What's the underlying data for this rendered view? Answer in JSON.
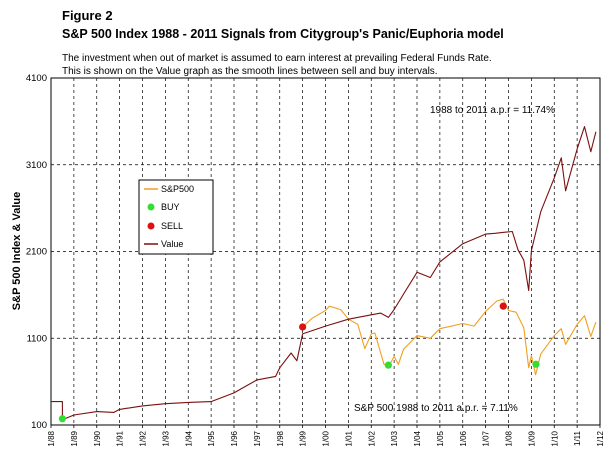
{
  "header": {
    "figure_label": "Figure 2",
    "title": "S&P 500 Index 1988 - 2011  Signals from Citygroup's Panic/Euphoria model",
    "note_line1": "The investment when out of market is assumed to earn interest at prevailing Federal Funds Rate.",
    "note_line2": "This is shown on the Value graph as the smooth lines between sell and buy intervals."
  },
  "chart_data": {
    "type": "line",
    "ylabel": "S&P 500 Index  &   Value",
    "ylim": [
      100,
      4100
    ],
    "yticks": [
      100,
      1100,
      2100,
      3100,
      4100
    ],
    "xlim": [
      "1988-01-01",
      "2011-12-31"
    ],
    "xtick_labels": [
      "1/88",
      "1/89",
      "1/90",
      "1/91",
      "1/92",
      "1/93",
      "1/94",
      "1/95",
      "1/96",
      "1/97",
      "1/98",
      "1/99",
      "1/00",
      "1/01",
      "1/02",
      "1/03",
      "1/04",
      "1/05",
      "1/06",
      "1/07",
      "1/08",
      "1/09",
      "1/10",
      "1/11",
      "1/12"
    ],
    "grid": true,
    "legend_position": "left",
    "annotations": {
      "value_apr": "1988 to 2011 a.p.r =   11.74%",
      "sp500_apr": "S&P 500 1988 to 2011 a.p.r. =    7.11%"
    },
    "series": [
      {
        "name": "S&P500",
        "color": "#F0A020",
        "x": [
          "1999-01-01",
          "1999-06-01",
          "2000-01-01",
          "2000-03-01",
          "2000-09-01",
          "2001-01-01",
          "2001-06-01",
          "2001-09-20",
          "2002-01-01",
          "2002-03-01",
          "2002-07-23",
          "2002-10-09",
          "2003-01-01",
          "2003-03-11",
          "2003-06-01",
          "2004-01-01",
          "2004-08-01",
          "2005-01-01",
          "2006-01-01",
          "2006-07-01",
          "2007-01-01",
          "2007-07-01",
          "2007-10-09",
          "2008-01-01",
          "2008-05-01",
          "2008-09-01",
          "2008-11-20",
          "2009-01-01",
          "2009-03-09",
          "2009-06-01",
          "2010-01-01",
          "2010-04-23",
          "2010-07-01",
          "2011-01-01",
          "2011-04-29",
          "2011-08-08",
          "2011-10-28"
        ],
        "values": [
          1230,
          1330,
          1420,
          1470,
          1430,
          1320,
          1260,
          980,
          1150,
          1160,
          800,
          780,
          890,
          800,
          975,
          1130,
          1100,
          1210,
          1270,
          1240,
          1410,
          1530,
          1550,
          1420,
          1400,
          1220,
          760,
          900,
          680,
          920,
          1130,
          1210,
          1030,
          1260,
          1360,
          1120,
          1285
        ]
      },
      {
        "name": "Value",
        "color": "#7A1010",
        "x": [
          "1988-01-01",
          "1988-07-01",
          "1988-07-02",
          "1989-01-01",
          "1990-01-01",
          "1990-10-01",
          "1991-01-01",
          "1992-01-01",
          "1993-01-01",
          "1994-01-01",
          "1995-01-01",
          "1996-01-01",
          "1997-01-01",
          "1997-10-27",
          "1998-01-01",
          "1998-07-01",
          "1998-10-01",
          "1999-01-01",
          "2000-01-01",
          "2001-01-01",
          "2002-01-01",
          "2002-06-01",
          "2002-10-01",
          "2003-01-01",
          "2003-06-01",
          "2004-01-01",
          "2004-08-01",
          "2005-01-01",
          "2006-01-01",
          "2007-01-01",
          "2007-06-01",
          "2007-10-01",
          "2008-03-01",
          "2008-06-01",
          "2008-09-01",
          "2008-11-20",
          "2009-01-01",
          "2009-06-01",
          "2010-01-01",
          "2010-04-23",
          "2010-07-01",
          "2011-01-01",
          "2011-04-29",
          "2011-08-08",
          "2011-10-28"
        ],
        "values": [
          370,
          370,
          160,
          215,
          255,
          245,
          280,
          320,
          345,
          360,
          370,
          470,
          620,
          660,
          760,
          930,
          840,
          1150,
          1240,
          1320,
          1370,
          1390,
          1340,
          1430,
          1610,
          1860,
          1800,
          1980,
          2190,
          2300,
          2310,
          2320,
          2330,
          2120,
          2000,
          1650,
          2110,
          2560,
          2950,
          3180,
          2800,
          3280,
          3540,
          3250,
          3480
        ]
      }
    ],
    "signals": {
      "buy": {
        "name": "BUY",
        "color": "#33DD33",
        "points": [
          {
            "x": "1988-07-01",
            "y": 172
          },
          {
            "x": "2002-10-01",
            "y": 790
          },
          {
            "x": "2009-03-15",
            "y": 800
          }
        ]
      },
      "sell": {
        "name": "SELL",
        "color": "#DD1111",
        "points": [
          {
            "x": "1999-01-01",
            "y": 1230
          },
          {
            "x": "2007-10-09",
            "y": 1470
          }
        ]
      }
    }
  }
}
